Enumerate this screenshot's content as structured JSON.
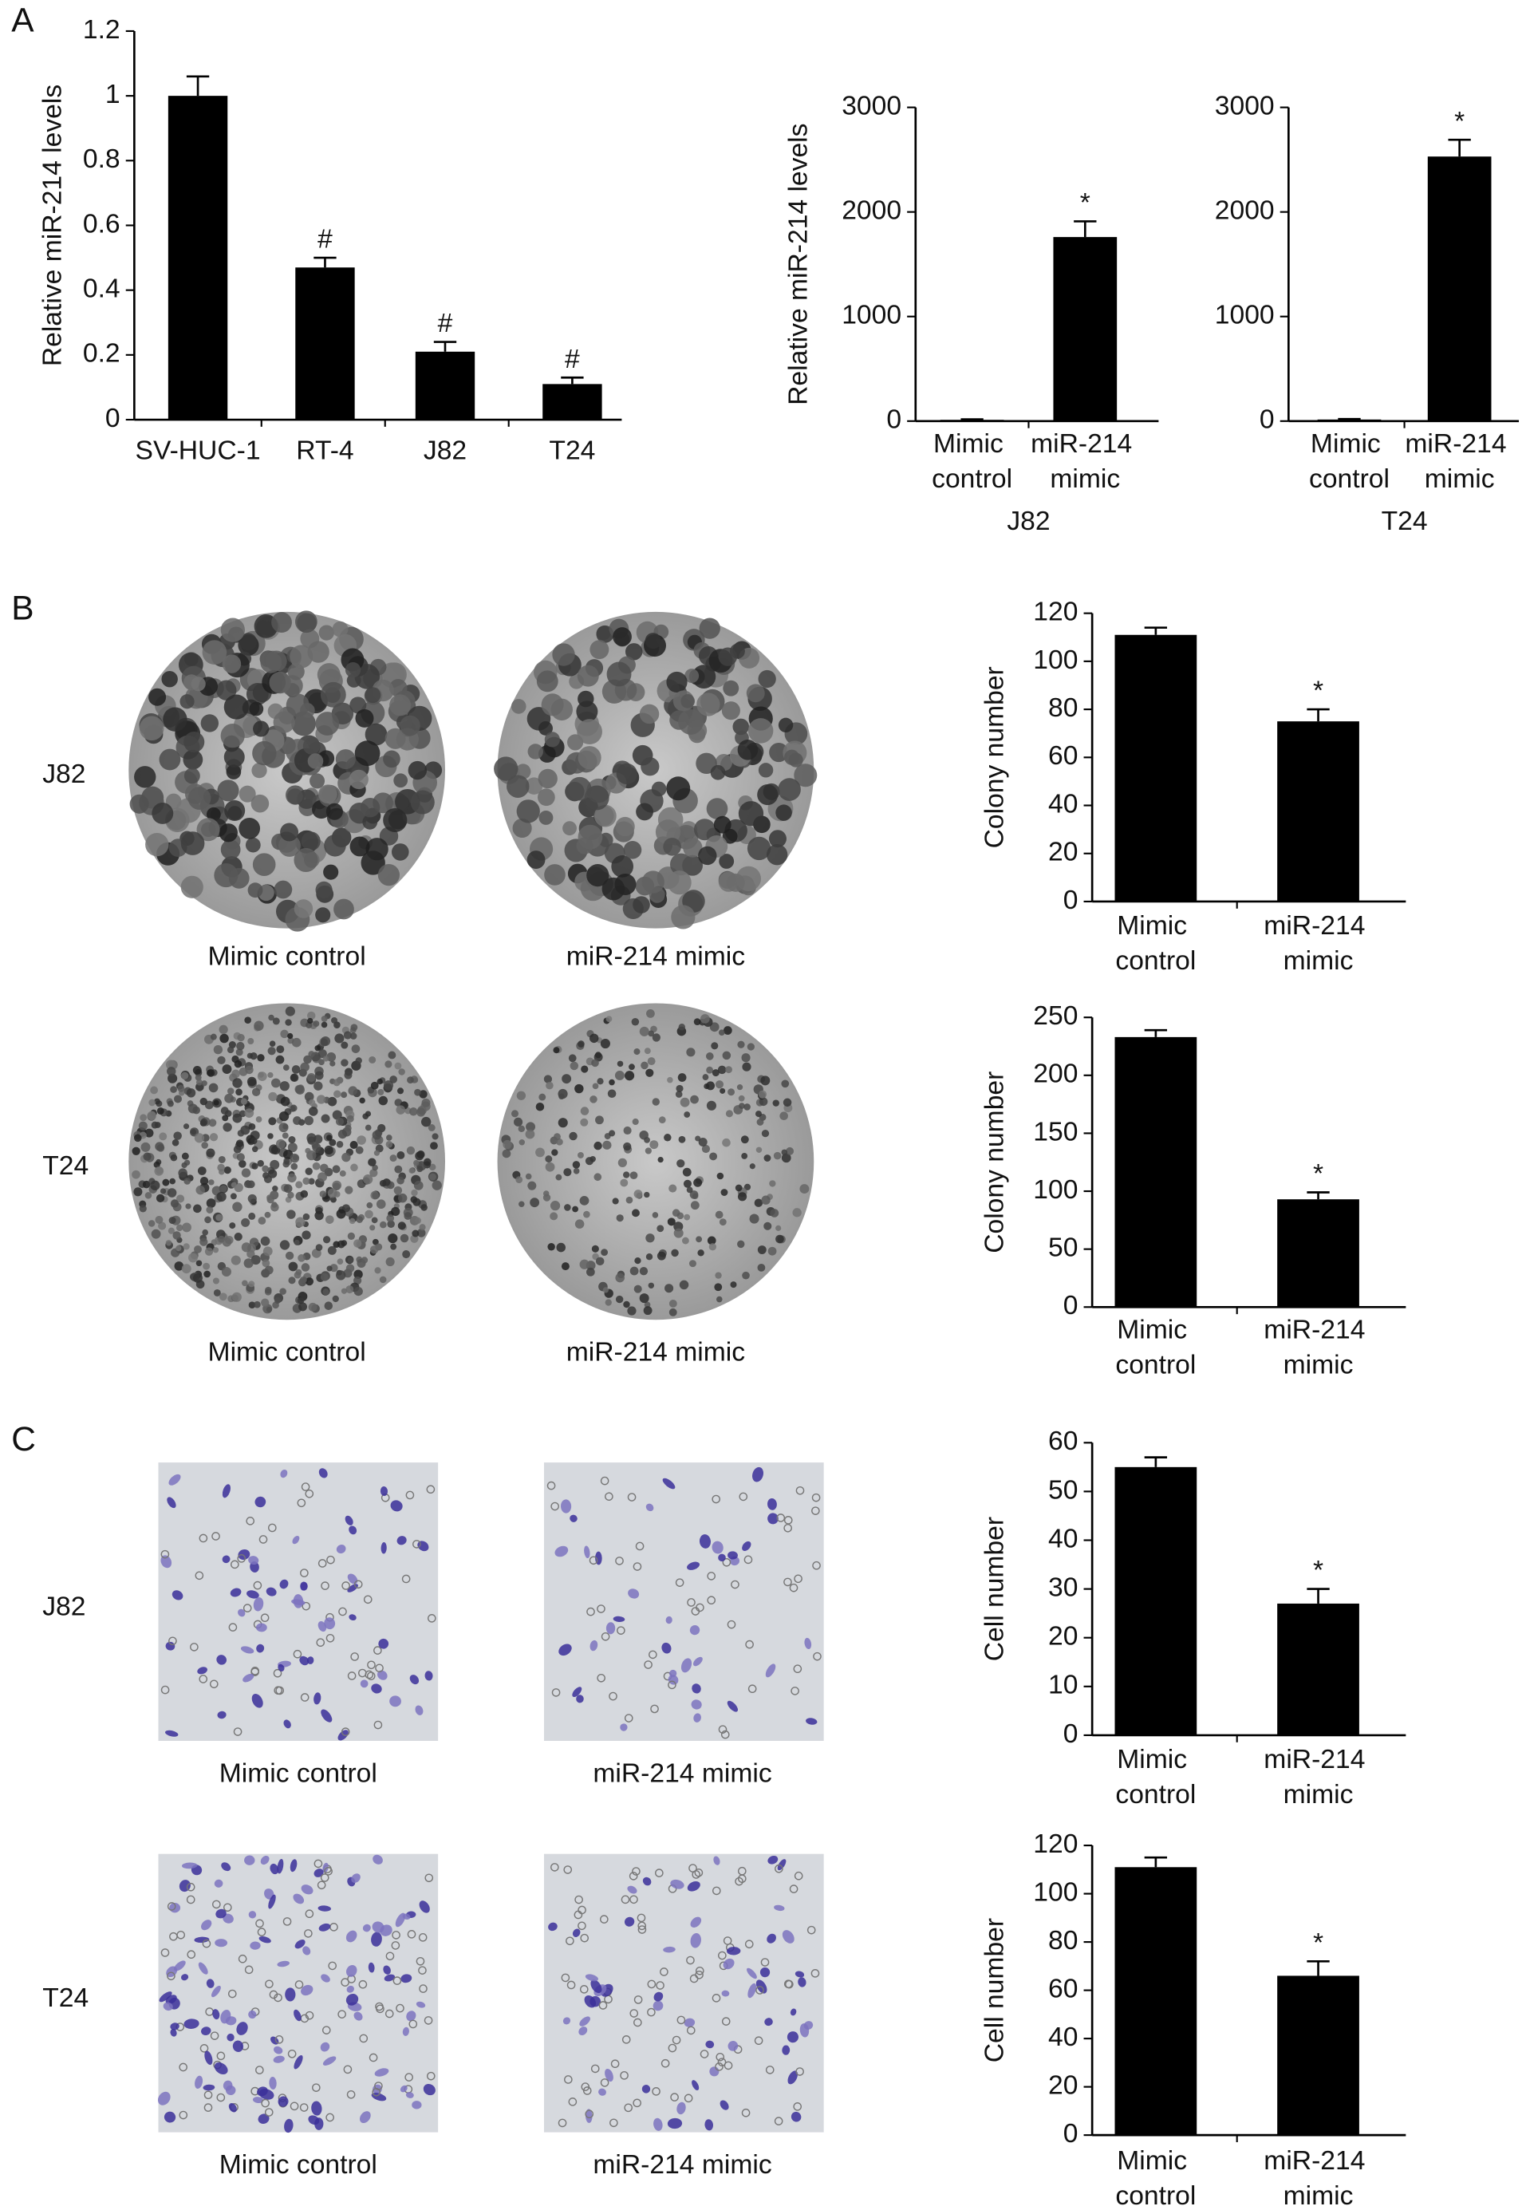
{
  "panel_labels": [
    "A",
    "B",
    "C"
  ],
  "image_rows": [
    {
      "label": "J82",
      "captions": [
        "Mimic control",
        "miR-214 mimic"
      ]
    },
    {
      "label": "T24",
      "captions": [
        "Mimic control",
        "miR-214 mimic"
      ]
    },
    {
      "label": "J82",
      "captions": [
        "Mimic control",
        "miR-214 mimic"
      ]
    },
    {
      "label": "T24",
      "captions": [
        "Mimic control",
        "miR-214 mimic"
      ]
    }
  ],
  "chart_data": [
    {
      "type": "bar",
      "ylabel": "Relative miR-214 levels",
      "categories": [
        "SV-HUC-1",
        "RT-4",
        "J82",
        "T24"
      ],
      "values": [
        1,
        0.47,
        0.21,
        0.11
      ],
      "errors": [
        0.06,
        0.03,
        0.03,
        0.02
      ],
      "annotations": [
        null,
        "#",
        "#",
        "#"
      ],
      "color": "#000000",
      "ylim": [
        0,
        1.2
      ],
      "yticks": [
        0,
        0.2,
        0.4,
        0.6,
        0.8,
        1,
        1.2
      ]
    },
    {
      "type": "bar",
      "ylabel": "Relative miR-214 levels",
      "categories": [
        "Mimic control",
        "miR-214 mimic"
      ],
      "xlabel": "J82",
      "values": [
        12,
        1760
      ],
      "errors": [
        5,
        150
      ],
      "annotations": [
        null,
        "*"
      ],
      "color": "#000000",
      "ylim": [
        0,
        3000
      ],
      "yticks": [
        0,
        1000,
        2000,
        3000
      ]
    },
    {
      "type": "bar",
      "categories": [
        "Mimic control",
        "miR-214 mimic"
      ],
      "xlabel": "T24",
      "values": [
        15,
        2530
      ],
      "errors": [
        5,
        160
      ],
      "annotations": [
        null,
        "*"
      ],
      "color": "#000000",
      "ylim": [
        0,
        3000
      ],
      "yticks": [
        0,
        1000,
        2000,
        3000
      ]
    },
    {
      "type": "bar",
      "ylabel": "Colony number",
      "categories": [
        "Mimic control",
        "miR-214 mimic"
      ],
      "values": [
        111,
        75
      ],
      "errors": [
        3,
        5
      ],
      "annotations": [
        null,
        "*"
      ],
      "color": "#000000",
      "ylim": [
        0,
        120
      ],
      "yticks": [
        0,
        20,
        40,
        60,
        80,
        100,
        120
      ]
    },
    {
      "type": "bar",
      "ylabel": "Colony number",
      "categories": [
        "Mimic control",
        "miR-214 mimic"
      ],
      "values": [
        233,
        93
      ],
      "errors": [
        6,
        6
      ],
      "annotations": [
        null,
        "*"
      ],
      "color": "#000000",
      "ylim": [
        0,
        250
      ],
      "yticks": [
        0,
        50,
        100,
        150,
        200,
        250
      ]
    },
    {
      "type": "bar",
      "ylabel": "Cell number",
      "categories": [
        "Mimic control",
        "miR-214 mimic"
      ],
      "values": [
        55,
        27
      ],
      "errors": [
        2,
        3
      ],
      "annotations": [
        null,
        "*"
      ],
      "color": "#000000",
      "ylim": [
        0,
        60
      ],
      "yticks": [
        0,
        10,
        20,
        30,
        40,
        50,
        60
      ]
    },
    {
      "type": "bar",
      "ylabel": "Cell number",
      "categories": [
        "Mimic control",
        "miR-214 mimic"
      ],
      "values": [
        111,
        66
      ],
      "errors": [
        4,
        6
      ],
      "annotations": [
        null,
        "*"
      ],
      "color": "#000000",
      "ylim": [
        0,
        120
      ],
      "yticks": [
        0,
        20,
        40,
        60,
        80,
        100,
        120
      ]
    }
  ]
}
